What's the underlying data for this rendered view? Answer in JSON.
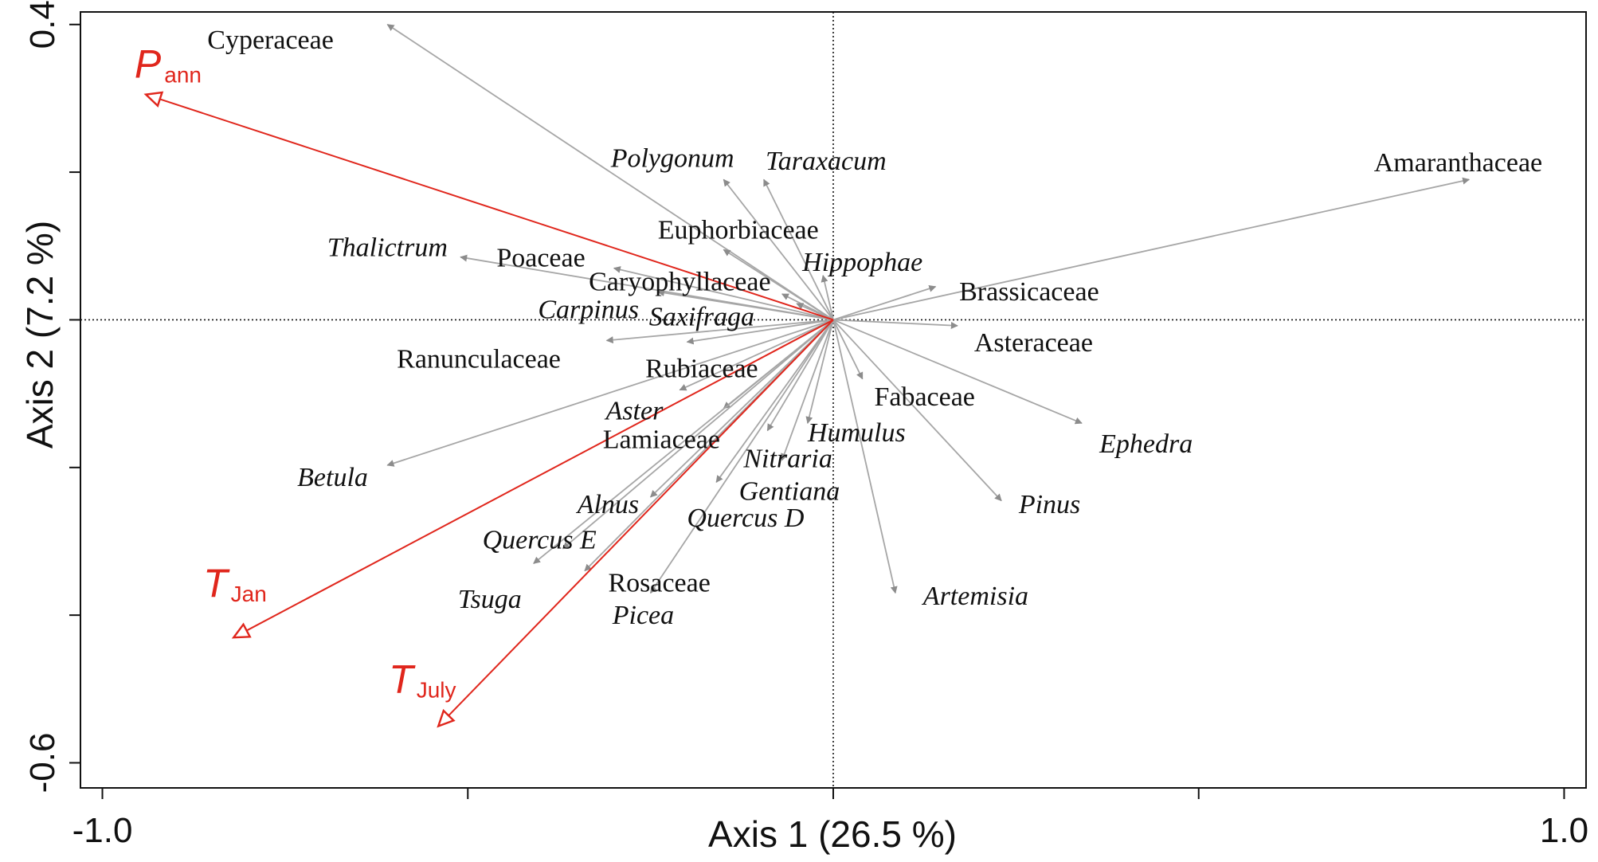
{
  "chart_data": {
    "type": "scatter",
    "subtype": "biplot",
    "xlabel": "Axis 1 (26.5 %)",
    "ylabel": "Axis 2 (7.2 %)",
    "xlim": [
      -1.03,
      1.03
    ],
    "ylim": [
      -0.634,
      0.417
    ],
    "x_ticks": [
      -1.0,
      -0.5,
      0.0,
      0.5,
      1.0
    ],
    "x_tick_labels": [
      "-1.0",
      "",
      "",
      "",
      "1.0"
    ],
    "y_ticks": [
      0.4,
      0.2,
      0.0,
      -0.2,
      -0.4,
      -0.6
    ],
    "y_tick_labels": [
      "0.4",
      "",
      "",
      "",
      "",
      "-0.6"
    ],
    "reference_lines": {
      "x": 0.0,
      "y": 0.0,
      "style": "dotted"
    },
    "colors": {
      "taxa": "#a6a6a6",
      "environment": "#e0261c",
      "text": "#111111"
    },
    "taxa_vectors": [
      {
        "name": "Cyperaceae",
        "italic": false,
        "x": -0.61,
        "y": 0.4
      },
      {
        "name": "Polygonum",
        "italic": true,
        "x": -0.15,
        "y": 0.19
      },
      {
        "name": "Taraxacum",
        "italic": true,
        "x": -0.095,
        "y": 0.19
      },
      {
        "name": "Amaranthaceae",
        "italic": false,
        "x": 0.87,
        "y": 0.19
      },
      {
        "name": "Euphorbiaceae",
        "italic": false,
        "x": -0.15,
        "y": 0.095
      },
      {
        "name": "Thalictrum",
        "italic": true,
        "x": -0.51,
        "y": 0.085
      },
      {
        "name": "Hippophae",
        "italic": true,
        "x": -0.014,
        "y": 0.06
      },
      {
        "name": "Poaceae",
        "italic": false,
        "x": -0.3,
        "y": 0.07
      },
      {
        "name": "Brassicaceae",
        "italic": false,
        "x": 0.14,
        "y": 0.045
      },
      {
        "name": "Caryophyllaceae",
        "italic": false,
        "x": -0.07,
        "y": 0.035
      },
      {
        "name": "Carpinus",
        "italic": true,
        "x": -0.24,
        "y": 0.038
      },
      {
        "name": "Saxifraga",
        "italic": true,
        "x": -0.05,
        "y": 0.022
      },
      {
        "name": "Asteraceae",
        "italic": false,
        "x": 0.17,
        "y": -0.008
      },
      {
        "name": "Ranunculaceae",
        "italic": false,
        "x": -0.31,
        "y": -0.028
      },
      {
        "name": "Rubiaceae",
        "italic": false,
        "x": -0.2,
        "y": -0.03
      },
      {
        "name": "Fabaceae",
        "italic": false,
        "x": 0.04,
        "y": -0.08
      },
      {
        "name": "Aster",
        "italic": true,
        "x": -0.21,
        "y": -0.095
      },
      {
        "name": "Lamiaceae",
        "italic": false,
        "x": -0.15,
        "y": -0.12
      },
      {
        "name": "Humulus",
        "italic": true,
        "x": -0.035,
        "y": -0.14
      },
      {
        "name": "Ephedra",
        "italic": true,
        "x": 0.34,
        "y": -0.14
      },
      {
        "name": "Nitraria",
        "italic": true,
        "x": -0.09,
        "y": -0.15
      },
      {
        "name": "Betula",
        "italic": true,
        "x": -0.61,
        "y": -0.197
      },
      {
        "name": "Gentiana",
        "italic": true,
        "x": -0.07,
        "y": -0.19
      },
      {
        "name": "Pinus",
        "italic": true,
        "x": 0.23,
        "y": -0.245
      },
      {
        "name": "Alnus",
        "italic": true,
        "x": -0.25,
        "y": -0.24
      },
      {
        "name": "Quercus D",
        "italic": true,
        "x": -0.16,
        "y": -0.22
      },
      {
        "name": "Quercus E",
        "italic": true,
        "x": -0.37,
        "y": -0.31
      },
      {
        "name": "Rosaceae",
        "italic": false,
        "x": -0.34,
        "y": -0.34
      },
      {
        "name": "Tsuga",
        "italic": true,
        "x": -0.41,
        "y": -0.33
      },
      {
        "name": "Picea",
        "italic": true,
        "x": -0.25,
        "y": -0.37
      },
      {
        "name": "Artemisia",
        "italic": true,
        "x": 0.085,
        "y": -0.37
      }
    ],
    "environment_vectors": [
      {
        "name": "P",
        "subscript": "ann",
        "x": -0.94,
        "y": 0.305
      },
      {
        "name": "T",
        "subscript": "Jan",
        "x": -0.82,
        "y": -0.43
      },
      {
        "name": "T",
        "subscript": "July",
        "x": -0.54,
        "y": -0.55
      }
    ]
  }
}
